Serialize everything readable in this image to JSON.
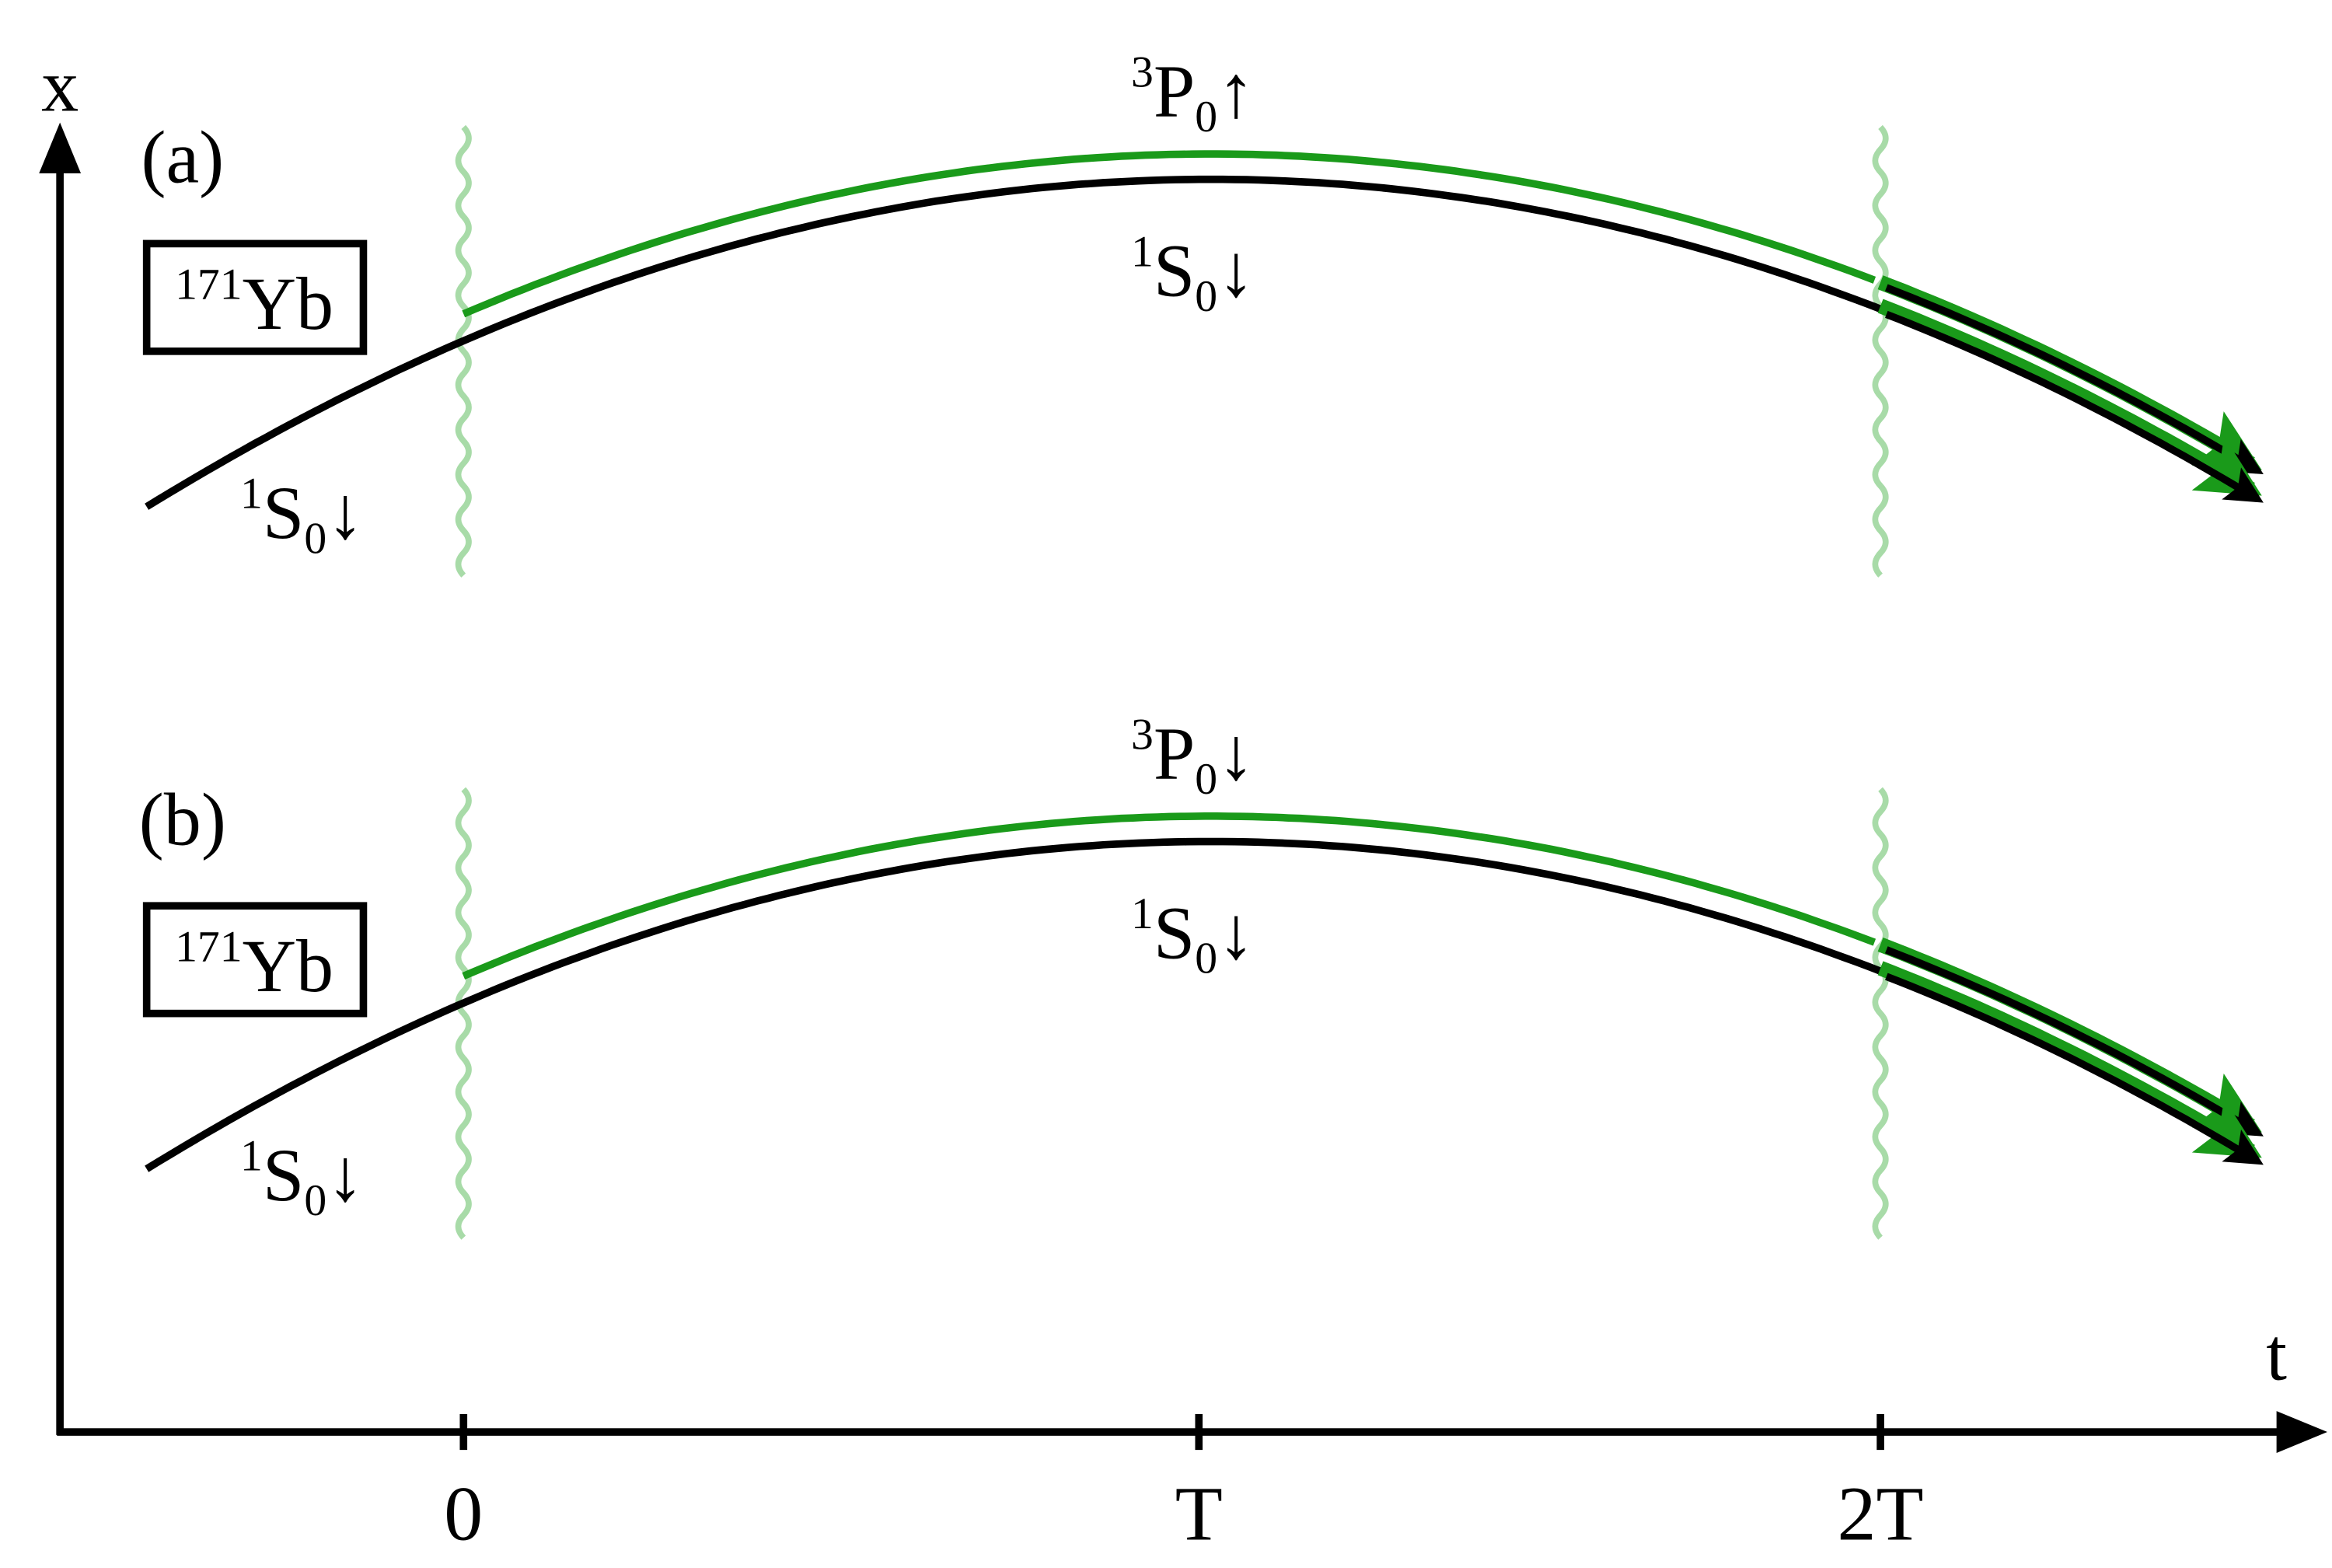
{
  "axes": {
    "y_label": "x",
    "x_label": "t",
    "ticks": [
      "0",
      "T",
      "2T"
    ]
  },
  "panels": [
    {
      "label": "(a)",
      "species": {
        "mass": "171",
        "element": "Yb"
      },
      "upper_state": {
        "multiplicity": "3",
        "letter": "P",
        "sub": "0",
        "spin": "↑"
      },
      "middle_state": {
        "multiplicity": "1",
        "letter": "S",
        "sub": "0",
        "spin": "↓"
      },
      "initial_state": {
        "multiplicity": "1",
        "letter": "S",
        "sub": "0",
        "spin": "↓"
      }
    },
    {
      "label": "(b)",
      "species": {
        "mass": "171",
        "element": "Yb"
      },
      "upper_state": {
        "multiplicity": "3",
        "letter": "P",
        "sub": "0",
        "spin": "↓"
      },
      "middle_state": {
        "multiplicity": "1",
        "letter": "S",
        "sub": "0",
        "spin": "↓"
      },
      "initial_state": {
        "multiplicity": "1",
        "letter": "S",
        "sub": "0",
        "spin": "↓"
      }
    }
  ]
}
